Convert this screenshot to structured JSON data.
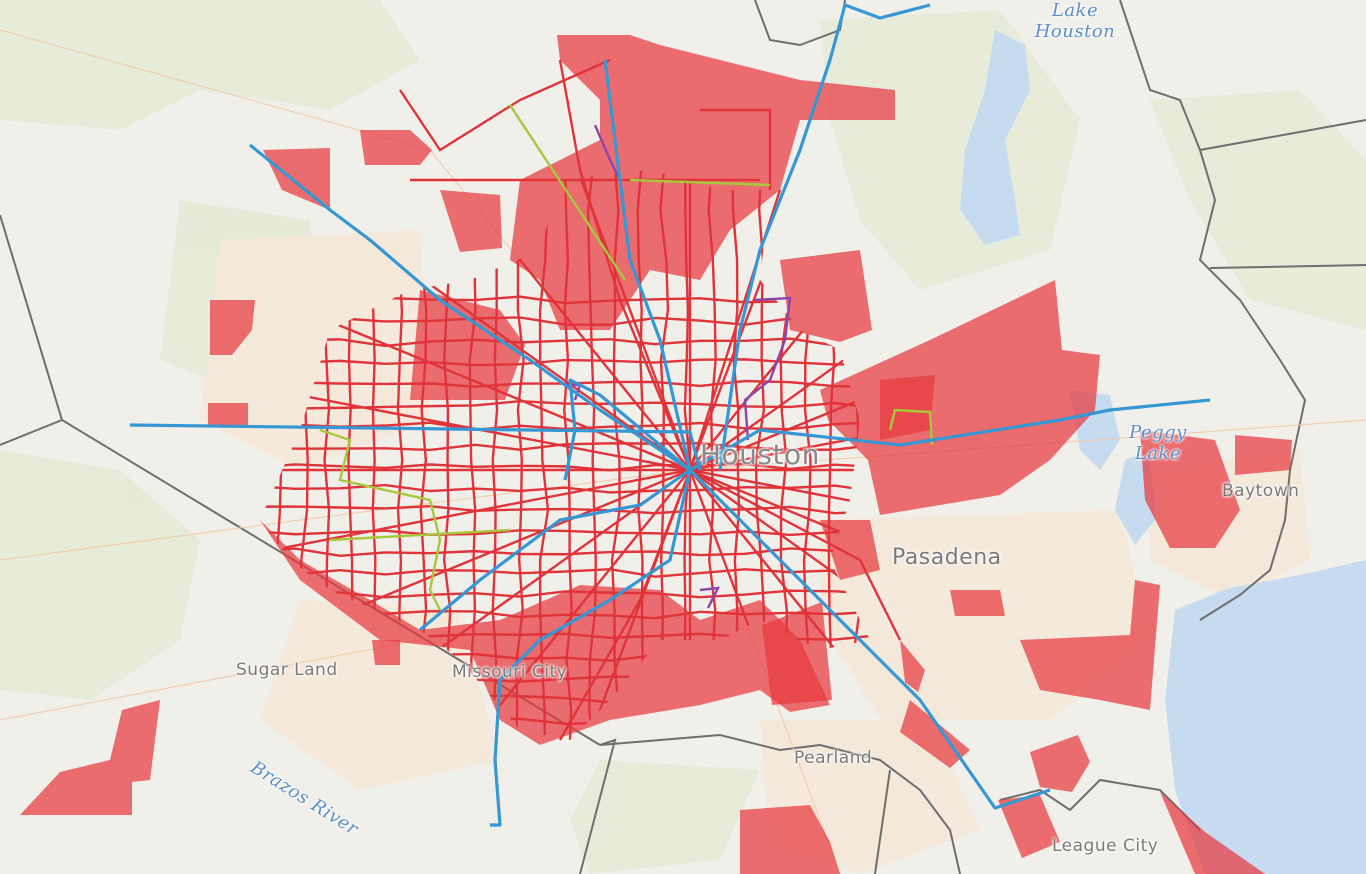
{
  "labels": {
    "lake_houston": "Lake Houston",
    "houston": "Houston",
    "peggy_lake": "Peggy Lake",
    "baytown": "Baytown",
    "pasadena": "Pasadena",
    "sugar_land": "Sugar Land",
    "missouri_city": "Missouri City",
    "brazos_river": "Brazos River",
    "pearland": "Pearland",
    "league_city": "League City"
  }
}
